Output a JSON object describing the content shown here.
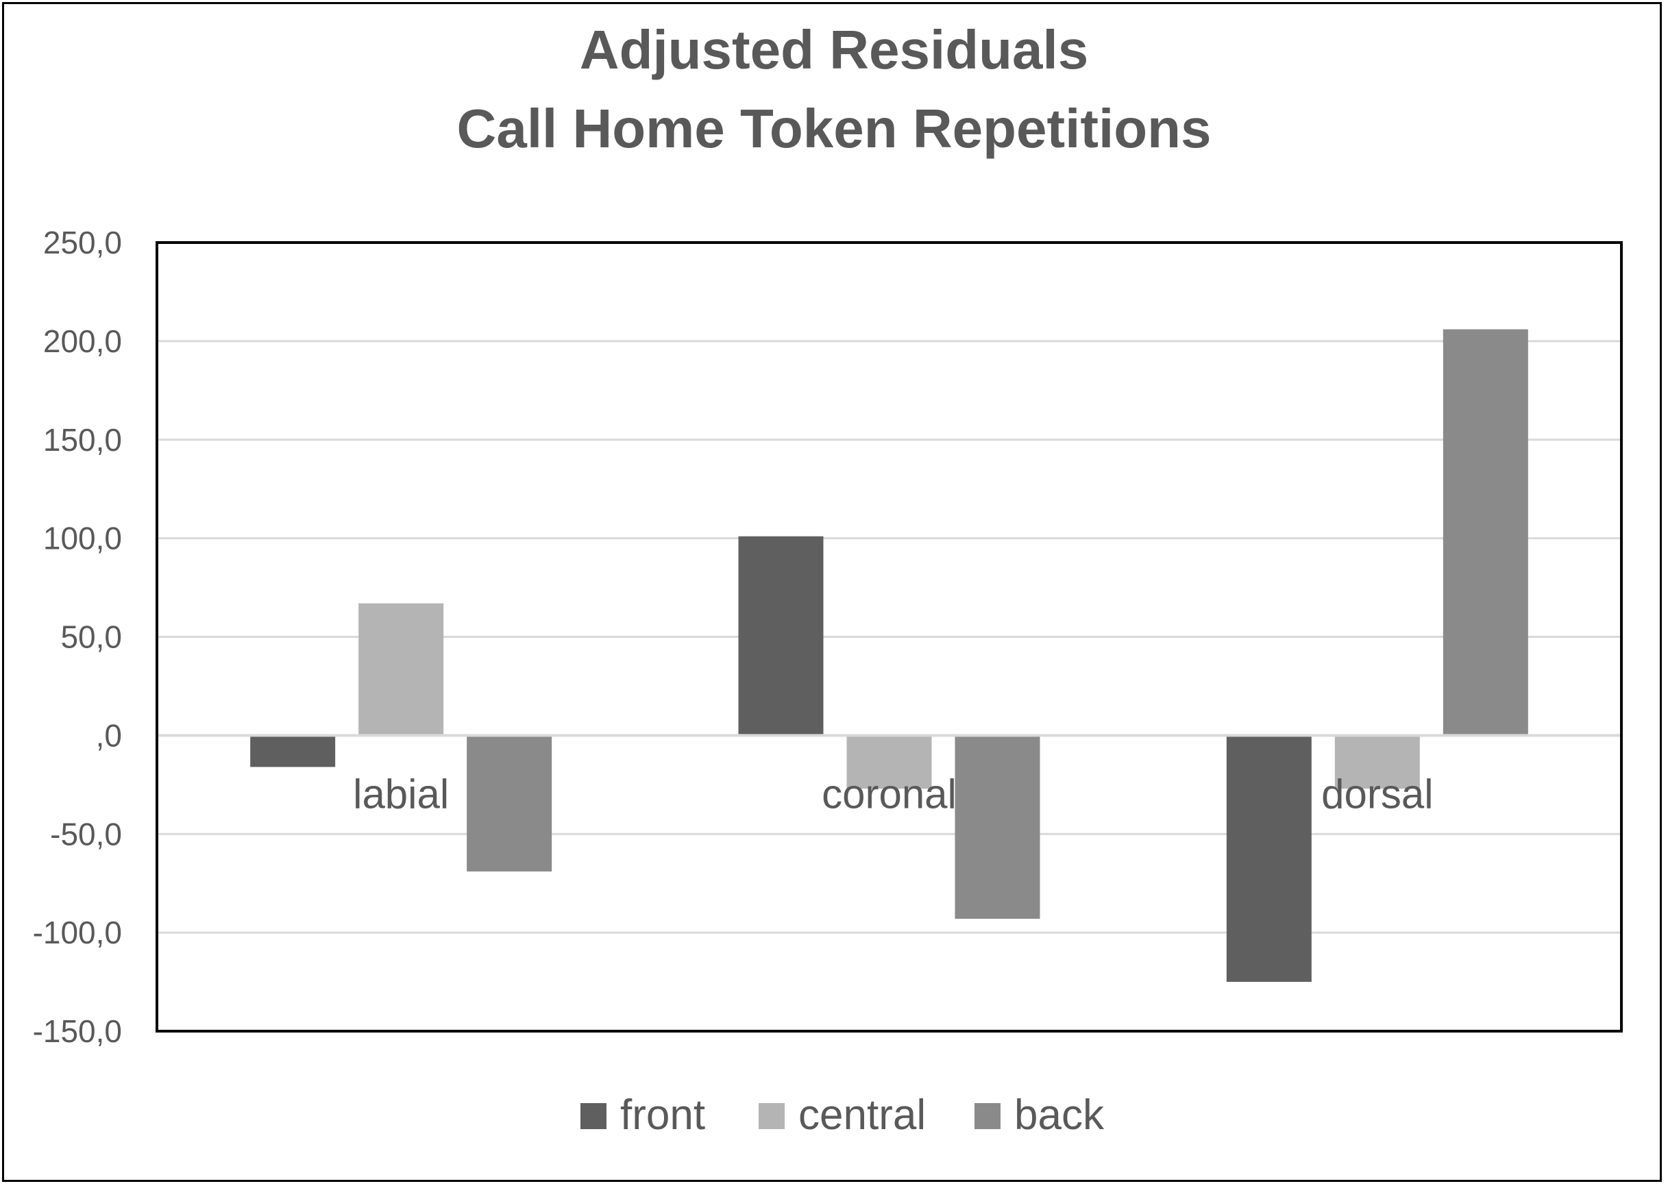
{
  "chart_data": {
    "type": "bar",
    "title_lines": [
      "Adjusted Residuals",
      "Call Home Token Repetitions"
    ],
    "categories": [
      "labial",
      "coronal",
      "dorsal"
    ],
    "series": [
      {
        "name": "front",
        "color": "#5f5f5f",
        "values": [
          -16.0,
          101.0,
          -125.0
        ]
      },
      {
        "name": "central",
        "color": "#b4b4b4",
        "values": [
          67.0,
          -27.0,
          -27.0
        ]
      },
      {
        "name": "back",
        "color": "#8a8a8a",
        "values": [
          -69.0,
          -93.0,
          206.0
        ]
      }
    ],
    "ylim": [
      -150,
      250
    ],
    "yticks": [
      250,
      200,
      150,
      100,
      50,
      0,
      -50,
      -100,
      -150
    ],
    "ytick_labels": [
      "250,0",
      "200,0",
      "150,0",
      "100,0",
      "50,0",
      ",0",
      "-50,0",
      "-100,0",
      "-150,0"
    ],
    "grid": true,
    "legend_position": "bottom",
    "xlabel": "",
    "ylabel": ""
  }
}
